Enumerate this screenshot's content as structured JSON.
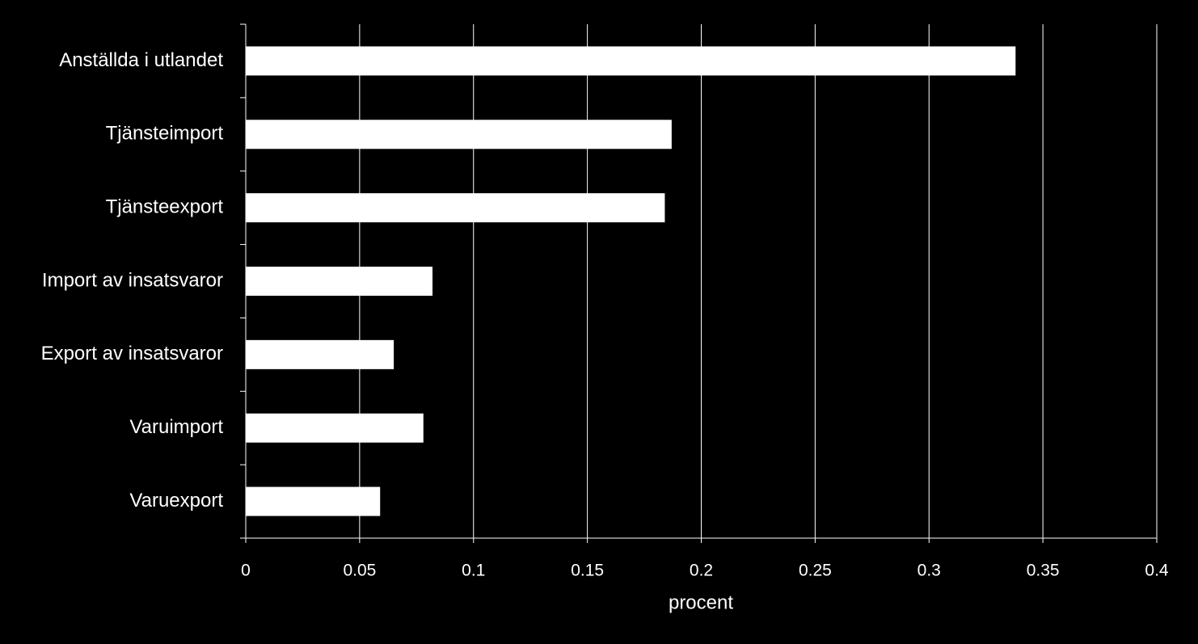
{
  "chart_data": {
    "type": "bar",
    "orientation": "horizontal",
    "categories": [
      "Anställda i utlandet",
      "Tjänsteimport",
      "Tjänsteexport",
      "Import av insatsvaror",
      "Export av insatsvaror",
      "Varuimport",
      "Varuexport"
    ],
    "values": [
      0.338,
      0.187,
      0.184,
      0.082,
      0.065,
      0.078,
      0.059
    ],
    "color": "#ffffff",
    "xlabel": "procent",
    "xlim": [
      0,
      0.4
    ],
    "xticks": [
      0,
      0.05,
      0.1,
      0.15,
      0.2,
      0.25,
      0.3,
      0.35,
      0.4
    ],
    "grid": true
  }
}
